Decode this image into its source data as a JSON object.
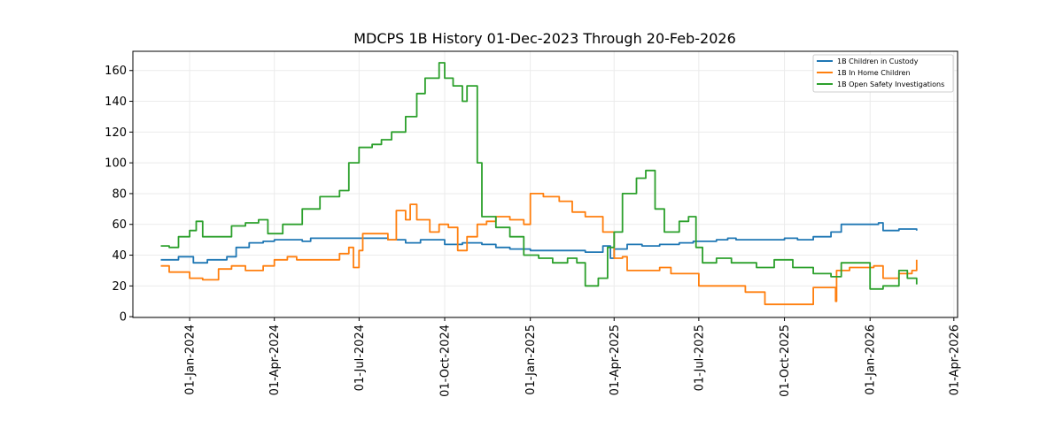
{
  "chart_data": {
    "type": "line",
    "title": "MDCPS 1B History 01-Dec-2023 Through 20-Feb-2026",
    "xlabel": "",
    "ylabel": "",
    "xlim": [
      "2023-11-01",
      "2026-04-05"
    ],
    "ylim": [
      -0.5,
      172.5
    ],
    "grid": true,
    "legend_position": "top-right",
    "yticks": [
      0,
      20,
      40,
      60,
      80,
      100,
      120,
      140,
      160
    ],
    "xticks": [
      {
        "date": "2024-01-01",
        "label": "01-Jan-2024"
      },
      {
        "date": "2024-04-01",
        "label": "01-Apr-2024"
      },
      {
        "date": "2024-07-01",
        "label": "01-Jul-2024"
      },
      {
        "date": "2024-10-01",
        "label": "01-Oct-2024"
      },
      {
        "date": "2025-01-01",
        "label": "01-Jan-2025"
      },
      {
        "date": "2025-04-01",
        "label": "01-Apr-2025"
      },
      {
        "date": "2025-07-01",
        "label": "01-Jul-2025"
      },
      {
        "date": "2025-10-01",
        "label": "01-Oct-2025"
      },
      {
        "date": "2026-01-01",
        "label": "01-Jan-2026"
      },
      {
        "date": "2026-04-01",
        "label": "01-Apr-2026"
      }
    ],
    "series": [
      {
        "name": "1B Children in Custody",
        "color": "#1f77b4",
        "points": [
          [
            "2023-12-01",
            37
          ],
          [
            "2023-12-20",
            39
          ],
          [
            "2024-01-05",
            35
          ],
          [
            "2024-01-20",
            37
          ],
          [
            "2024-02-10",
            39
          ],
          [
            "2024-02-20",
            45
          ],
          [
            "2024-03-05",
            48
          ],
          [
            "2024-03-20",
            49
          ],
          [
            "2024-04-01",
            50
          ],
          [
            "2024-05-01",
            49
          ],
          [
            "2024-05-10",
            51
          ],
          [
            "2024-07-01",
            51
          ],
          [
            "2024-08-01",
            50
          ],
          [
            "2024-08-20",
            48
          ],
          [
            "2024-09-05",
            50
          ],
          [
            "2024-09-20",
            50
          ],
          [
            "2024-10-01",
            47
          ],
          [
            "2024-10-20",
            48
          ],
          [
            "2024-11-10",
            47
          ],
          [
            "2024-11-25",
            45
          ],
          [
            "2024-12-10",
            44
          ],
          [
            "2025-01-01",
            43
          ],
          [
            "2025-02-01",
            43
          ],
          [
            "2025-03-01",
            42
          ],
          [
            "2025-03-20",
            46
          ],
          [
            "2025-03-28",
            38
          ],
          [
            "2025-04-01",
            44
          ],
          [
            "2025-04-15",
            47
          ],
          [
            "2025-05-01",
            46
          ],
          [
            "2025-05-20",
            47
          ],
          [
            "2025-06-10",
            48
          ],
          [
            "2025-06-25",
            49
          ],
          [
            "2025-07-20",
            50
          ],
          [
            "2025-08-01",
            51
          ],
          [
            "2025-08-10",
            50
          ],
          [
            "2025-09-20",
            50
          ],
          [
            "2025-10-01",
            51
          ],
          [
            "2025-10-15",
            50
          ],
          [
            "2025-11-01",
            52
          ],
          [
            "2025-11-20",
            55
          ],
          [
            "2025-12-01",
            60
          ],
          [
            "2026-01-01",
            60
          ],
          [
            "2026-01-10",
            61
          ],
          [
            "2026-01-15",
            56
          ],
          [
            "2026-02-01",
            57
          ],
          [
            "2026-02-20",
            56
          ]
        ]
      },
      {
        "name": "1B In Home Children",
        "color": "#ff7f0e",
        "points": [
          [
            "2023-12-01",
            33
          ],
          [
            "2023-12-10",
            29
          ],
          [
            "2024-01-01",
            25
          ],
          [
            "2024-01-15",
            24
          ],
          [
            "2024-02-01",
            31
          ],
          [
            "2024-02-15",
            33
          ],
          [
            "2024-03-01",
            30
          ],
          [
            "2024-03-20",
            33
          ],
          [
            "2024-04-01",
            37
          ],
          [
            "2024-04-15",
            39
          ],
          [
            "2024-04-25",
            37
          ],
          [
            "2024-05-25",
            37
          ],
          [
            "2024-06-10",
            41
          ],
          [
            "2024-06-20",
            45
          ],
          [
            "2024-06-25",
            32
          ],
          [
            "2024-07-01",
            43
          ],
          [
            "2024-07-05",
            54
          ],
          [
            "2024-08-01",
            50
          ],
          [
            "2024-08-10",
            69
          ],
          [
            "2024-08-20",
            63
          ],
          [
            "2024-08-25",
            73
          ],
          [
            "2024-09-01",
            63
          ],
          [
            "2024-09-15",
            55
          ],
          [
            "2024-09-25",
            60
          ],
          [
            "2024-10-05",
            58
          ],
          [
            "2024-10-15",
            43
          ],
          [
            "2024-10-25",
            52
          ],
          [
            "2024-11-05",
            60
          ],
          [
            "2024-11-15",
            62
          ],
          [
            "2024-11-25",
            65
          ],
          [
            "2024-12-10",
            63
          ],
          [
            "2024-12-25",
            60
          ],
          [
            "2025-01-01",
            80
          ],
          [
            "2025-01-15",
            78
          ],
          [
            "2025-02-01",
            75
          ],
          [
            "2025-02-15",
            68
          ],
          [
            "2025-03-01",
            65
          ],
          [
            "2025-03-20",
            55
          ],
          [
            "2025-04-01",
            38
          ],
          [
            "2025-04-10",
            39
          ],
          [
            "2025-04-15",
            30
          ],
          [
            "2025-05-01",
            30
          ],
          [
            "2025-05-20",
            32
          ],
          [
            "2025-06-01",
            28
          ],
          [
            "2025-06-25",
            28
          ],
          [
            "2025-07-01",
            20
          ],
          [
            "2025-08-01",
            20
          ],
          [
            "2025-08-20",
            16
          ],
          [
            "2025-09-10",
            8
          ],
          [
            "2025-10-15",
            8
          ],
          [
            "2025-11-01",
            19
          ],
          [
            "2025-11-20",
            19
          ],
          [
            "2025-11-25",
            10
          ],
          [
            "2025-11-26",
            30
          ],
          [
            "2025-12-10",
            32
          ],
          [
            "2026-01-05",
            33
          ],
          [
            "2026-01-15",
            25
          ],
          [
            "2026-02-01",
            28
          ],
          [
            "2026-02-15",
            30
          ],
          [
            "2026-02-20",
            37
          ]
        ]
      },
      {
        "name": "1B Open Safety Investigations",
        "color": "#2ca02c",
        "points": [
          [
            "2023-12-01",
            46
          ],
          [
            "2023-12-10",
            45
          ],
          [
            "2023-12-20",
            52
          ],
          [
            "2024-01-01",
            56
          ],
          [
            "2024-01-08",
            62
          ],
          [
            "2024-01-15",
            52
          ],
          [
            "2024-02-01",
            52
          ],
          [
            "2024-02-15",
            59
          ],
          [
            "2024-03-01",
            61
          ],
          [
            "2024-03-15",
            63
          ],
          [
            "2024-03-25",
            54
          ],
          [
            "2024-04-10",
            60
          ],
          [
            "2024-05-01",
            70
          ],
          [
            "2024-05-20",
            78
          ],
          [
            "2024-06-01",
            78
          ],
          [
            "2024-06-10",
            82
          ],
          [
            "2024-06-20",
            100
          ],
          [
            "2024-07-01",
            110
          ],
          [
            "2024-07-15",
            112
          ],
          [
            "2024-07-25",
            115
          ],
          [
            "2024-08-05",
            120
          ],
          [
            "2024-08-20",
            130
          ],
          [
            "2024-09-01",
            145
          ],
          [
            "2024-09-10",
            155
          ],
          [
            "2024-09-25",
            165
          ],
          [
            "2024-10-01",
            155
          ],
          [
            "2024-10-10",
            150
          ],
          [
            "2024-10-20",
            140
          ],
          [
            "2024-10-25",
            150
          ],
          [
            "2024-11-05",
            100
          ],
          [
            "2024-11-10",
            65
          ],
          [
            "2024-11-25",
            58
          ],
          [
            "2024-12-10",
            52
          ],
          [
            "2024-12-25",
            40
          ],
          [
            "2025-01-10",
            38
          ],
          [
            "2025-01-25",
            35
          ],
          [
            "2025-02-10",
            38
          ],
          [
            "2025-02-20",
            35
          ],
          [
            "2025-03-01",
            20
          ],
          [
            "2025-03-15",
            25
          ],
          [
            "2025-03-25",
            45
          ],
          [
            "2025-04-01",
            55
          ],
          [
            "2025-04-10",
            80
          ],
          [
            "2025-04-25",
            90
          ],
          [
            "2025-05-05",
            95
          ],
          [
            "2025-05-15",
            70
          ],
          [
            "2025-05-25",
            55
          ],
          [
            "2025-06-10",
            62
          ],
          [
            "2025-06-20",
            65
          ],
          [
            "2025-06-28",
            45
          ],
          [
            "2025-07-05",
            35
          ],
          [
            "2025-07-20",
            38
          ],
          [
            "2025-08-05",
            35
          ],
          [
            "2025-09-01",
            32
          ],
          [
            "2025-09-20",
            37
          ],
          [
            "2025-10-10",
            32
          ],
          [
            "2025-11-01",
            28
          ],
          [
            "2025-11-20",
            26
          ],
          [
            "2025-12-01",
            35
          ],
          [
            "2025-12-15",
            35
          ],
          [
            "2026-01-01",
            18
          ],
          [
            "2026-01-15",
            20
          ],
          [
            "2026-02-01",
            30
          ],
          [
            "2026-02-10",
            25
          ],
          [
            "2026-02-20",
            21
          ]
        ]
      }
    ]
  }
}
